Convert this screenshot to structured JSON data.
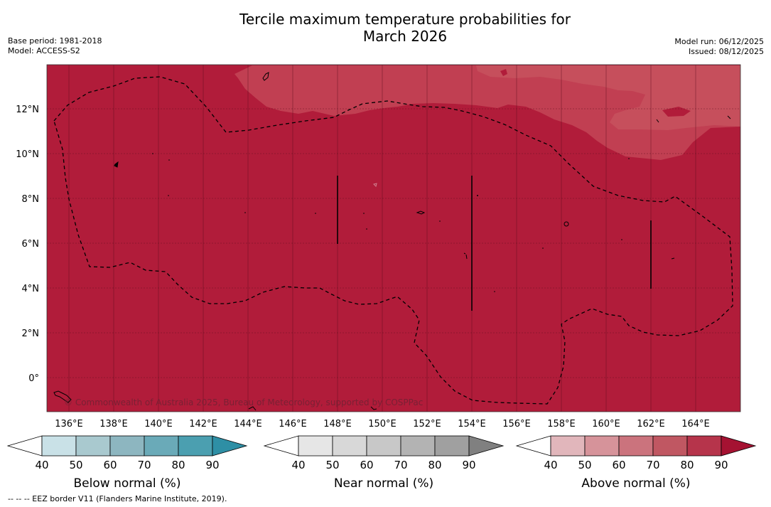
{
  "title_line1": "Tercile maximum temperature probabilities for",
  "title_line2": "March 2026",
  "base_period": "Base period: 1981-2018",
  "model": "Model: ACCESS-S2",
  "model_run": "Model run: 06/12/2025",
  "issued": "Issued: 08/12/2025",
  "copyright": "© Commonwealth of Australia 2025, Bureau of Meteorology, supported by COSPPac",
  "footnote": "--  --  -- EEZ border V11 (Flanders Marine Institute, 2019).",
  "map": {
    "lon_labels": [
      "136°E",
      "138°E",
      "140°E",
      "142°E",
      "144°E",
      "146°E",
      "148°E",
      "150°E",
      "152°E",
      "154°E",
      "156°E",
      "158°E",
      "160°E",
      "162°E",
      "164°E"
    ],
    "lat_labels": [
      "12°N",
      "10°N",
      "8°N",
      "6°N",
      "4°N",
      "2°N",
      "0°"
    ]
  },
  "colorbars": [
    {
      "title": "Below normal (%)",
      "ticks": [
        "40",
        "50",
        "60",
        "70",
        "80",
        "90"
      ],
      "colors": [
        "#c9e1e7",
        "#a9c9cf",
        "#8db6c0",
        "#6aaab8",
        "#4b9fb0",
        "#2e8fa5"
      ]
    },
    {
      "title": "Near normal (%)",
      "ticks": [
        "40",
        "50",
        "60",
        "70",
        "80",
        "90"
      ],
      "colors": [
        "#e6e6e6",
        "#d8d8d8",
        "#c8c8c8",
        "#b3b3b3",
        "#a0a0a0",
        "#808080"
      ]
    },
    {
      "title": "Above normal (%)",
      "ticks": [
        "40",
        "50",
        "60",
        "70",
        "80",
        "90"
      ],
      "colors": [
        "#e1b6bb",
        "#d6939a",
        "#cb737d",
        "#c05762",
        "#b6344b",
        "#a51232"
      ]
    }
  ],
  "colors": {
    "main_fill": "#b11c3a",
    "light_fill": "#c13f52",
    "lighter_fill": "#c64f5c"
  }
}
